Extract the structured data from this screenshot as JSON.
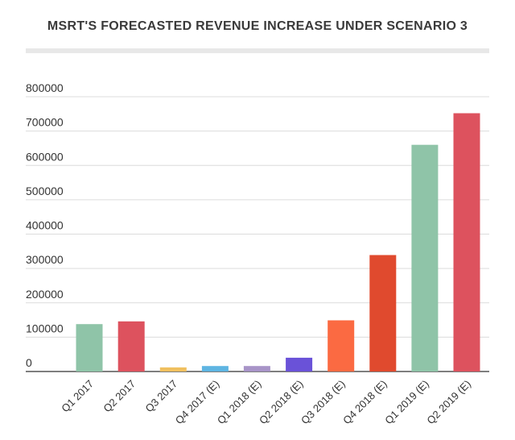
{
  "chart_data": {
    "type": "bar",
    "title": "MSRT'S FORECASTED REVENUE INCREASE UNDER SCENARIO 3",
    "xlabel": "",
    "ylabel": "",
    "ylim": [
      0,
      800000
    ],
    "yticks": [
      "0",
      "100000",
      "200000",
      "300000",
      "400000",
      "500000",
      "600000",
      "700000",
      "800000"
    ],
    "grid": true,
    "legend": "none",
    "categories": [
      "Q1 2017",
      "Q2 2017",
      "Q3 2017",
      "Q4 2017 (E)",
      "Q1 2018 (E)",
      "Q2 2018 (E)",
      "Q3 2018 (E)",
      "Q4 2018 (E)",
      "Q1 2019 (E)",
      "Q2 2019 (E)"
    ],
    "values": [
      138000,
      146000,
      12000,
      16000,
      16000,
      40000,
      149000,
      339000,
      660000,
      752000
    ],
    "colors": [
      "#8fc4a8",
      "#dd525e",
      "#f0c05f",
      "#5eb5e2",
      "#a894c8",
      "#6a52d8",
      "#fb6a42",
      "#e04a2e",
      "#8fc4a8",
      "#dd525e"
    ]
  }
}
